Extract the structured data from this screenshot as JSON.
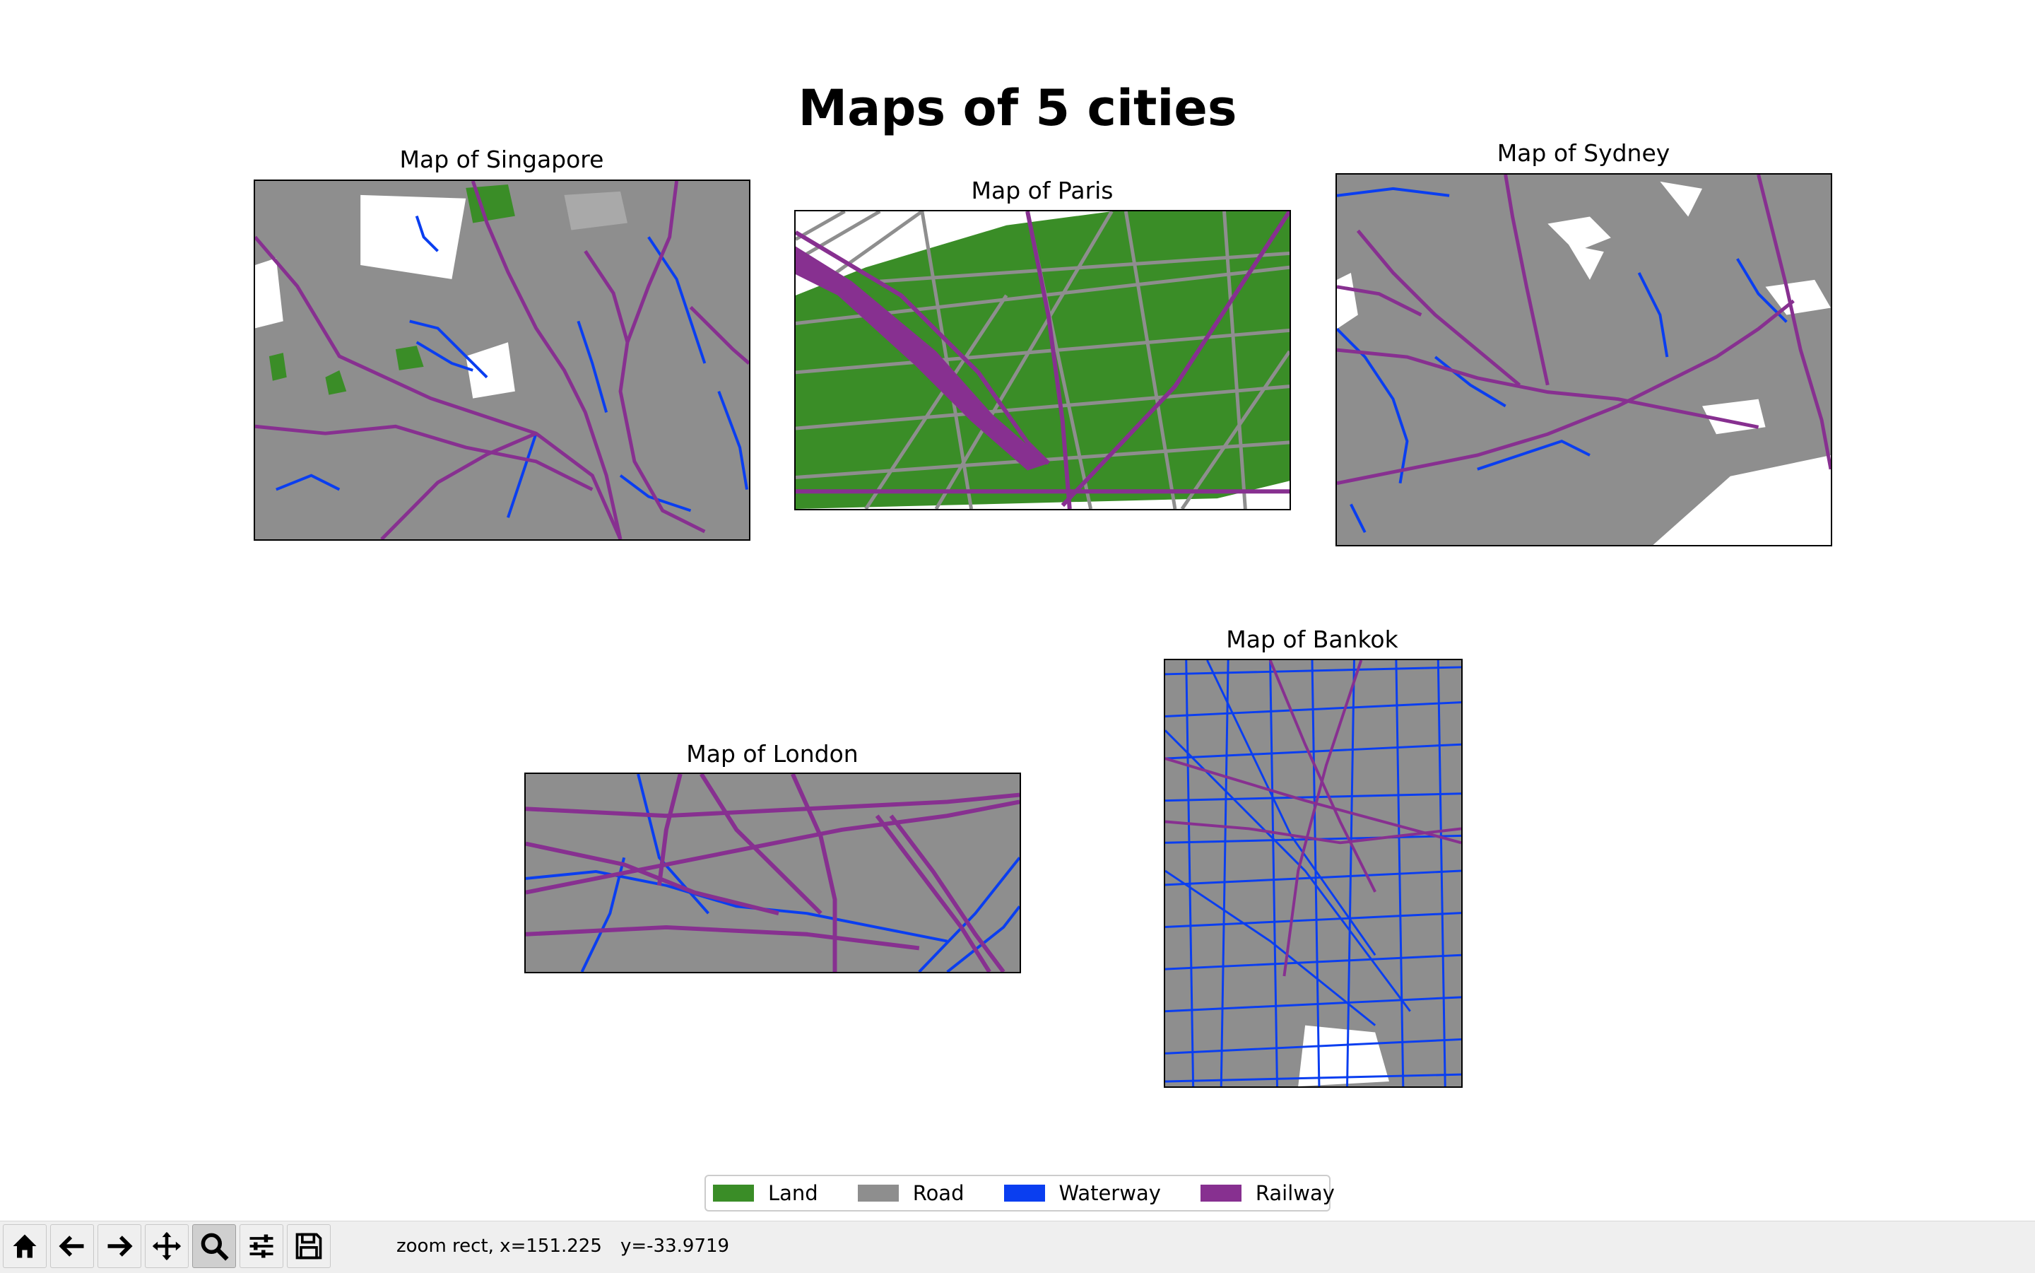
{
  "figure": {
    "suptitle": "Maps of 5 cities",
    "maps": [
      {
        "id": "singapore",
        "title": "Map of Singapore"
      },
      {
        "id": "paris",
        "title": "Map of Paris"
      },
      {
        "id": "sydney",
        "title": "Map of Sydney"
      },
      {
        "id": "london",
        "title": "Map of London"
      },
      {
        "id": "bankok",
        "title": "Map of Bankok"
      }
    ]
  },
  "legend": {
    "items": [
      {
        "label": "Land",
        "color": "#3a8d27"
      },
      {
        "label": "Road",
        "color": "#8e8e8e"
      },
      {
        "label": "Waterway",
        "color": "#0a3ef0"
      },
      {
        "label": "Railway",
        "color": "#873090"
      }
    ]
  },
  "toolbar": {
    "buttons": [
      {
        "name": "home",
        "icon": "home-icon"
      },
      {
        "name": "back",
        "icon": "arrow-left-icon"
      },
      {
        "name": "forward",
        "icon": "arrow-right-icon"
      },
      {
        "name": "pan",
        "icon": "move-icon"
      },
      {
        "name": "zoom",
        "icon": "magnifier-icon",
        "active": true
      },
      {
        "name": "configure-subplots",
        "icon": "sliders-icon"
      },
      {
        "name": "save",
        "icon": "floppy-disk-icon"
      }
    ],
    "status_mode": "zoom rect, x=151.225",
    "status_y": "y=-33.9719"
  }
}
